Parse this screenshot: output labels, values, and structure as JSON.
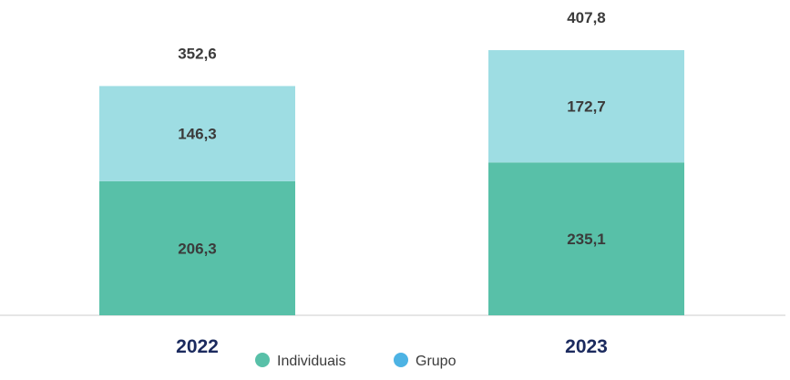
{
  "chart_data": {
    "type": "bar",
    "stacked": true,
    "categories": [
      "2022",
      "2023"
    ],
    "series": [
      {
        "name": "Individuais",
        "values": [
          206.3,
          235.1
        ],
        "labels": [
          "206,3",
          "235,1"
        ],
        "color": "#58c0a8"
      },
      {
        "name": "Grupo",
        "values": [
          146.3,
          172.7
        ],
        "labels": [
          "146,3",
          "172,7"
        ],
        "color": "#9edde3"
      }
    ],
    "totals": [
      352.6,
      407.8
    ],
    "total_labels": [
      "352,6",
      "407,8"
    ],
    "legend": {
      "position": "bottom-center",
      "items": [
        {
          "label": "Individuais",
          "color": "#58c0a8"
        },
        {
          "label": "Grupo",
          "color": "#4db3e4"
        }
      ]
    },
    "grid": false
  }
}
